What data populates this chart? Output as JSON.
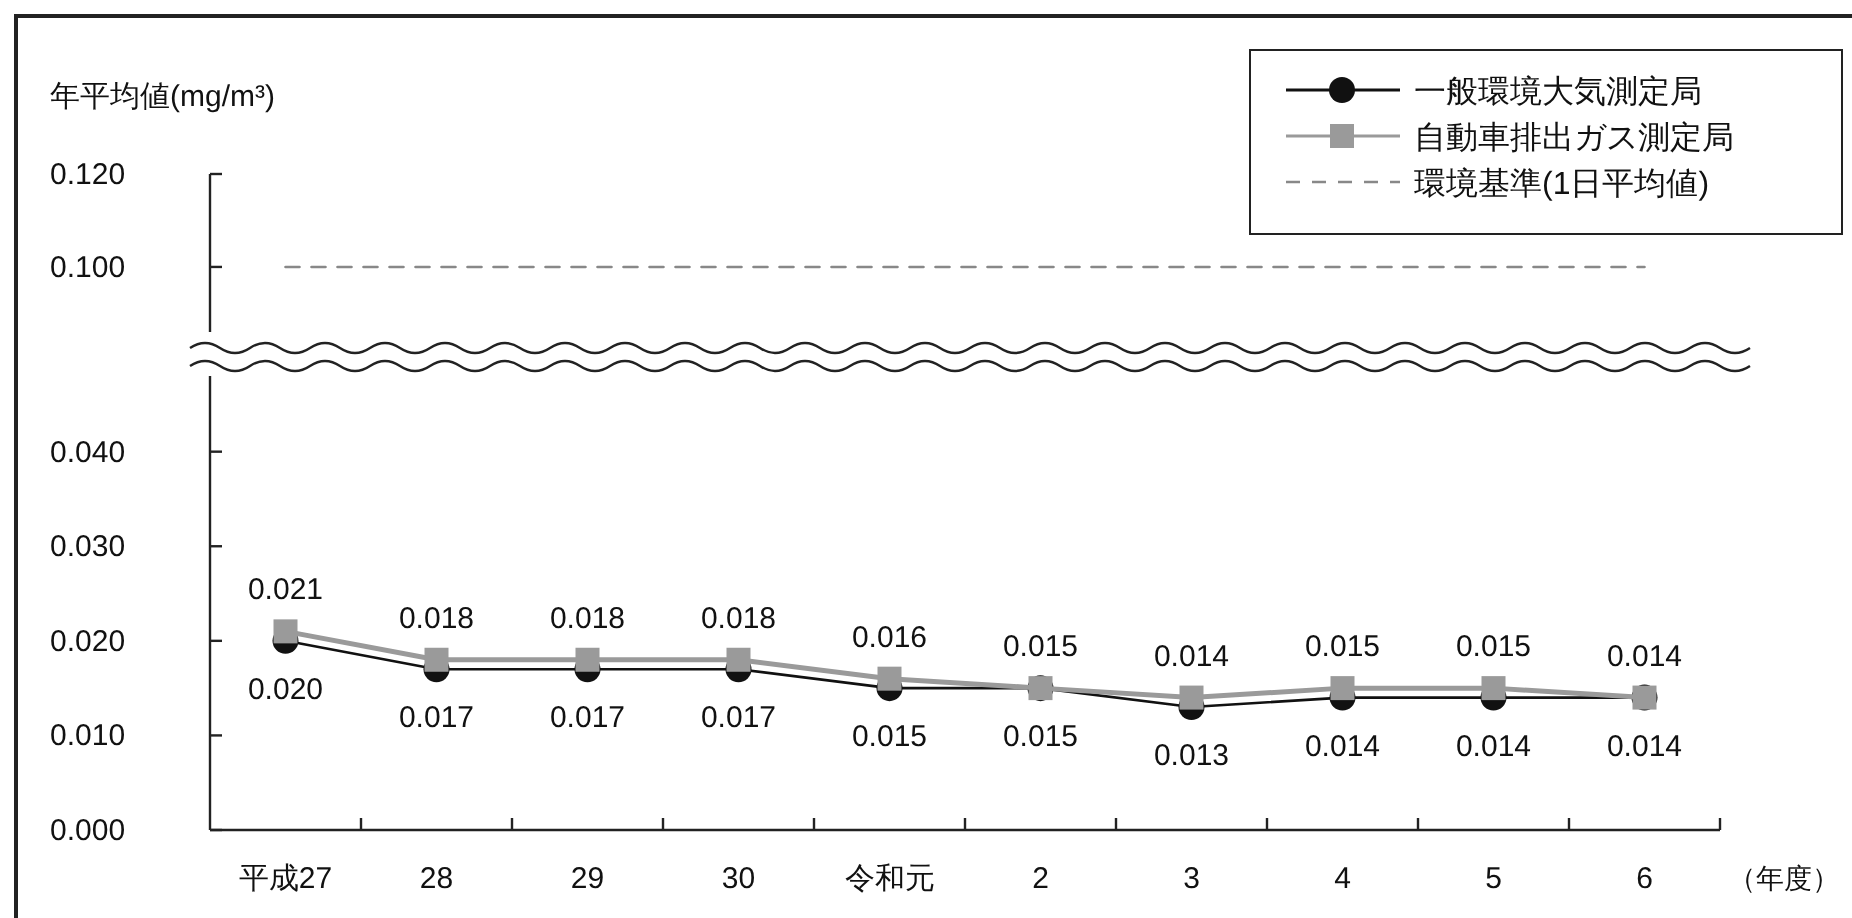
{
  "chart_data": [
    {
      "type": "line",
      "ylabel": "年平均値(mg/m³)",
      "categories": [
        null,
        null,
        null,
        null,
        null,
        null,
        null,
        null,
        null,
        null
      ],
      "ylim": [
        0.086,
        0.12
      ],
      "yticks": [
        {
          "value": 0.1,
          "label": "0.100"
        },
        {
          "value": 0.12,
          "label": "0.120"
        }
      ],
      "tick_labels": "y",
      "series": [
        {
          "name": "環境基準(1日平均値)",
          "color": "#888888",
          "line_style": "dashed",
          "values": [
            0.1,
            0.1,
            0.1,
            0.1,
            0.1,
            0.1,
            0.1,
            0.1,
            0.1,
            0.1
          ]
        }
      ]
    },
    {
      "type": "line",
      "xlabel": "（年度）",
      "categories": [
        "平成27",
        "28",
        "29",
        "30",
        "令和元",
        "2",
        "3",
        "4",
        "5",
        "6"
      ],
      "ylim": [
        0,
        0.048
      ],
      "yticks": [
        {
          "value": 0,
          "label": "0.000"
        },
        {
          "value": 0.01,
          "label": "0.010"
        },
        {
          "value": 0.02,
          "label": "0.020"
        },
        {
          "value": 0.03,
          "label": "0.030"
        },
        {
          "value": 0.04,
          "label": "0.040"
        }
      ],
      "legend": "top right",
      "line_style": "solid",
      "series": [
        {
          "name": "一般環境大気測定局",
          "color": "#111111",
          "marker": "circle",
          "values": [
            0.02,
            0.017,
            0.017,
            0.017,
            0.015,
            0.015,
            0.013,
            0.014,
            0.014,
            0.014
          ],
          "value_labels": [
            "0.020",
            "0.017",
            "0.017",
            "0.017",
            "0.015",
            "0.015",
            "0.013",
            "0.014",
            "0.014",
            "0.014"
          ]
        },
        {
          "name": "自動車排出ガス測定局",
          "color": "#9a9a9a",
          "marker": "square",
          "values": [
            0.021,
            0.018,
            0.018,
            0.018,
            0.016,
            0.015,
            0.014,
            0.015,
            0.015,
            0.014
          ],
          "value_labels": [
            "0.021",
            "0.018",
            "0.018",
            "0.018",
            "0.016",
            "0.015",
            "0.014",
            "0.015",
            "0.015",
            "0.014"
          ]
        }
      ]
    }
  ]
}
